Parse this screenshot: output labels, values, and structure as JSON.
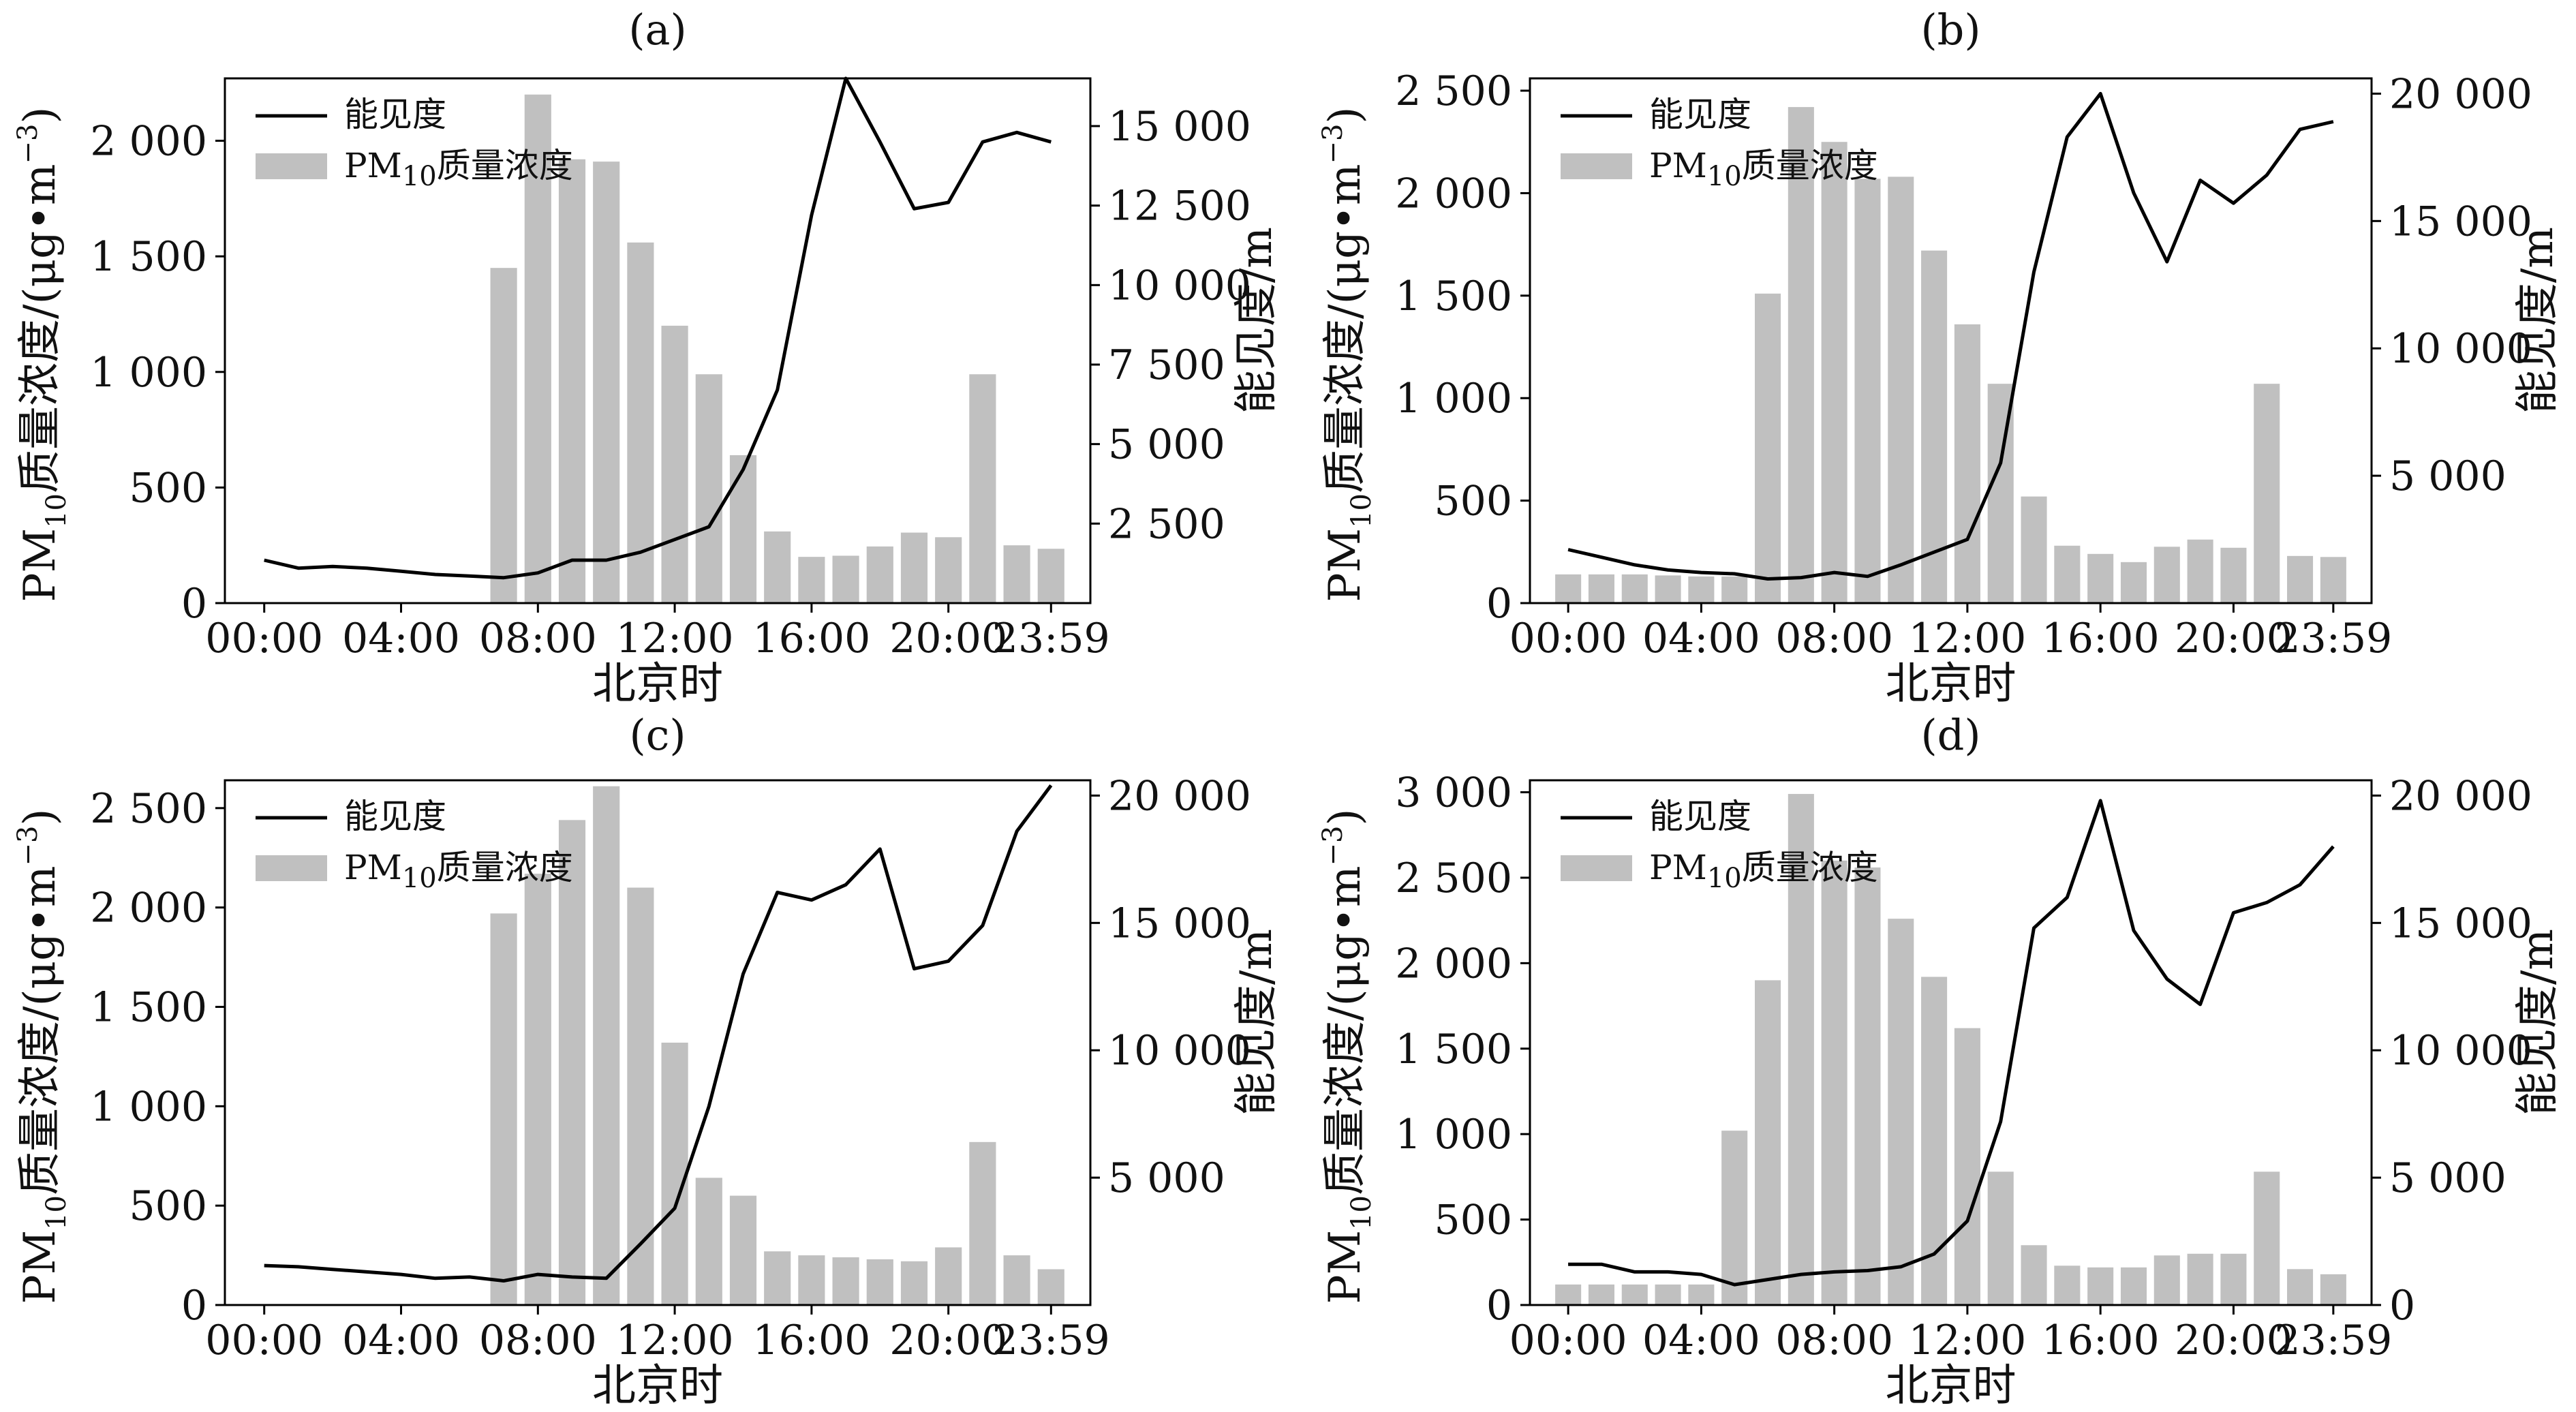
{
  "chart_data": [
    {
      "panel": "(a)",
      "type": "bar+line",
      "xlabel": "北京时",
      "ylabel_left": {
        "base": "PM",
        "sub": "10",
        "rest": "质量浓度/(μg•m",
        "sup": "−3",
        "close": ")"
      },
      "ylabel_right": "能见度/m",
      "xticks": [
        "00:00",
        "04:00",
        "08:00",
        "12:00",
        "16:00",
        "20:00",
        "23:59"
      ],
      "ylim_left": [
        0,
        2270
      ],
      "yticks_left": [
        0,
        500,
        1000,
        1500,
        2000
      ],
      "yticklabels_left": [
        "0",
        "500",
        "1 000",
        "1 500",
        "2 000"
      ],
      "ylim_right": [
        0,
        16500
      ],
      "yticks_right": [
        2500,
        5000,
        7500,
        10000,
        12500,
        15000
      ],
      "yticklabels_right": [
        "2 500",
        "5 000",
        "7 500",
        "10 000",
        "12 500",
        "15 000"
      ],
      "legend": [
        "能见度",
        "PM₁₀质量浓度"
      ],
      "legend_position": "top-left",
      "series": [
        {
          "name": "PM₁₀质量浓度",
          "kind": "bar",
          "color": "#c0c0c0",
          "hours": [
            7,
            8,
            9,
            10,
            11,
            12,
            13,
            14,
            15,
            16,
            17,
            18,
            19,
            20,
            21,
            22,
            23
          ],
          "values": [
            1450,
            2200,
            1920,
            1910,
            1560,
            1200,
            990,
            640,
            310,
            200,
            205,
            245,
            305,
            285,
            990,
            250,
            235
          ]
        },
        {
          "name": "能见度",
          "kind": "line",
          "color": "#000000",
          "hours": [
            0,
            1,
            2,
            3,
            4,
            5,
            6,
            7,
            8,
            9,
            10,
            11,
            12,
            13,
            14,
            15,
            16,
            17,
            18,
            19,
            20,
            21,
            22,
            23
          ],
          "values": [
            1350,
            1100,
            1150,
            1100,
            1000,
            900,
            850,
            800,
            950,
            1350,
            1350,
            1600,
            2000,
            2400,
            4200,
            6700,
            12200,
            16500,
            14500,
            12400,
            12600,
            14500,
            14800,
            14500
          ]
        }
      ]
    },
    {
      "panel": "(b)",
      "type": "bar+line",
      "xlabel": "北京时",
      "ylabel_left": {
        "base": "PM",
        "sub": "10",
        "rest": "质量浓度/(μg•m",
        "sup": "−3",
        "close": ")"
      },
      "ylabel_right": "能见度/m",
      "xticks": [
        "00:00",
        "04:00",
        "08:00",
        "12:00",
        "16:00",
        "20:00",
        "23:59"
      ],
      "ylim_left": [
        0,
        2560
      ],
      "yticks_left": [
        0,
        500,
        1000,
        1500,
        2000,
        2500
      ],
      "yticklabels_left": [
        "0",
        "500",
        "1 000",
        "1 500",
        "2 000",
        "2 500"
      ],
      "ylim_right": [
        0,
        20600
      ],
      "yticks_right": [
        5000,
        10000,
        15000,
        20000
      ],
      "yticklabels_right": [
        "5 000",
        "10 000",
        "15 000",
        "20 000"
      ],
      "legend": [
        "能见度",
        "PM₁₀质量浓度"
      ],
      "legend_position": "top-left",
      "series": [
        {
          "name": "PM₁₀质量浓度",
          "kind": "bar",
          "color": "#c0c0c0",
          "hours": [
            0,
            1,
            2,
            3,
            4,
            5,
            6,
            7,
            8,
            9,
            10,
            11,
            12,
            13,
            14,
            15,
            16,
            17,
            18,
            19,
            20,
            21,
            22,
            23
          ],
          "values": [
            140,
            140,
            140,
            135,
            130,
            130,
            1510,
            2420,
            2250,
            2070,
            2080,
            1720,
            1360,
            1070,
            520,
            280,
            240,
            200,
            275,
            310,
            270,
            1070,
            230,
            225
          ]
        },
        {
          "name": "能见度",
          "kind": "line",
          "color": "#000000",
          "hours": [
            0,
            1,
            2,
            3,
            4,
            5,
            6,
            7,
            8,
            9,
            10,
            11,
            12,
            13,
            14,
            15,
            16,
            17,
            18,
            19,
            20,
            21,
            22,
            23
          ],
          "values": [
            2100,
            1800,
            1500,
            1300,
            1200,
            1150,
            950,
            1000,
            1200,
            1050,
            1500,
            2000,
            2500,
            5500,
            13000,
            18300,
            20000,
            16100,
            13400,
            16600,
            15700,
            16800,
            18600,
            18900
          ]
        }
      ]
    },
    {
      "panel": "(c)",
      "type": "bar+line",
      "xlabel": "北京时",
      "ylabel_left": {
        "base": "PM",
        "sub": "10",
        "rest": "质量浓度/(μg•m",
        "sup": "−3",
        "close": ")"
      },
      "ylabel_right": "能见度/m",
      "xticks": [
        "00:00",
        "04:00",
        "08:00",
        "12:00",
        "16:00",
        "20:00",
        "23:59"
      ],
      "ylim_left": [
        0,
        2640
      ],
      "yticks_left": [
        0,
        500,
        1000,
        1500,
        2000,
        2500
      ],
      "yticklabels_left": [
        "0",
        "500",
        "1 000",
        "1 500",
        "2 000",
        "2 500"
      ],
      "ylim_right": [
        0,
        20600
      ],
      "yticks_right": [
        5000,
        10000,
        15000,
        20000
      ],
      "yticklabels_right": [
        "5 000",
        "10 000",
        "15 000",
        "20 000"
      ],
      "legend": [
        "能见度",
        "PM₁₀质量浓度"
      ],
      "legend_position": "top-left",
      "series": [
        {
          "name": "PM₁₀质量浓度",
          "kind": "bar",
          "color": "#c0c0c0",
          "hours": [
            7,
            8,
            9,
            10,
            11,
            12,
            13,
            14,
            15,
            16,
            17,
            18,
            19,
            20,
            21,
            22,
            23
          ],
          "values": [
            1970,
            2170,
            2440,
            2610,
            2100,
            1320,
            640,
            550,
            270,
            250,
            240,
            230,
            220,
            290,
            820,
            250,
            180
          ]
        },
        {
          "name": "能见度",
          "kind": "line",
          "color": "#000000",
          "hours": [
            0,
            1,
            2,
            3,
            4,
            5,
            6,
            7,
            8,
            9,
            10,
            11,
            12,
            13,
            14,
            15,
            16,
            17,
            18,
            19,
            20,
            21,
            22,
            23
          ],
          "values": [
            1550,
            1500,
            1400,
            1300,
            1200,
            1050,
            1100,
            950,
            1200,
            1100,
            1050,
            2400,
            3800,
            7800,
            13000,
            16200,
            15900,
            16500,
            17900,
            13200,
            13500,
            14900,
            18600,
            20400
          ]
        }
      ]
    },
    {
      "panel": "(d)",
      "type": "bar+line",
      "xlabel": "北京时",
      "ylabel_left": {
        "base": "PM",
        "sub": "10",
        "rest": "质量浓度/(μg•m",
        "sup": "−3",
        "close": ")"
      },
      "ylabel_right": "能见度/m",
      "xticks": [
        "00:00",
        "04:00",
        "08:00",
        "12:00",
        "16:00",
        "20:00",
        "23:59"
      ],
      "ylim_left": [
        0,
        3070
      ],
      "yticks_left": [
        0,
        500,
        1000,
        1500,
        2000,
        2500,
        3000
      ],
      "yticklabels_left": [
        "0",
        "500",
        "1 000",
        "1 500",
        "2 000",
        "2 500",
        "3 000"
      ],
      "ylim_right": [
        0,
        20600
      ],
      "yticks_right": [
        0,
        5000,
        10000,
        15000,
        20000
      ],
      "yticklabels_right": [
        "0",
        "5 000",
        "10 000",
        "15 000",
        "20 000"
      ],
      "legend": [
        "能见度",
        "PM₁₀质量浓度"
      ],
      "legend_position": "top-left",
      "series": [
        {
          "name": "PM₁₀质量浓度",
          "kind": "bar",
          "color": "#c0c0c0",
          "hours": [
            0,
            1,
            2,
            3,
            4,
            5,
            6,
            7,
            8,
            9,
            10,
            11,
            12,
            13,
            14,
            15,
            16,
            17,
            18,
            19,
            20,
            21,
            22,
            23
          ],
          "values": [
            120,
            120,
            120,
            120,
            120,
            1020,
            1900,
            2990,
            2600,
            2560,
            2260,
            1920,
            1620,
            780,
            350,
            230,
            220,
            220,
            290,
            300,
            300,
            780,
            210,
            180
          ]
        },
        {
          "name": "能见度",
          "kind": "line",
          "color": "#000000",
          "hours": [
            0,
            1,
            2,
            3,
            4,
            5,
            6,
            7,
            8,
            9,
            10,
            11,
            12,
            13,
            14,
            15,
            16,
            17,
            18,
            19,
            20,
            21,
            22,
            23
          ],
          "values": [
            1600,
            1600,
            1300,
            1300,
            1200,
            800,
            1000,
            1200,
            1300,
            1350,
            1500,
            2000,
            3300,
            7200,
            14800,
            16000,
            19800,
            14700,
            12800,
            11800,
            15400,
            15800,
            16500,
            18000
          ]
        }
      ]
    }
  ]
}
